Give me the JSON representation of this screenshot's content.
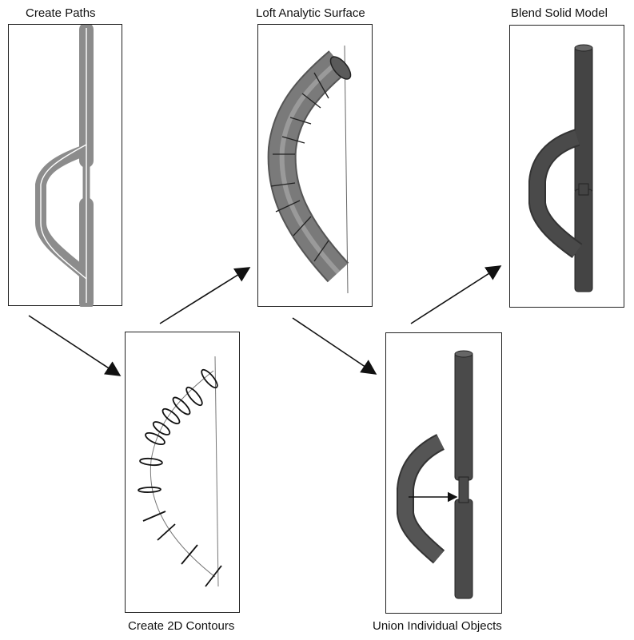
{
  "steps": {
    "create_paths": "Create Paths",
    "create_contours": "Create 2D Contours",
    "loft_surface": "Loft Analytic Surface",
    "union_objects": "Union Individual Objects",
    "blend_model": "Blend Solid Model"
  },
  "colors": {
    "path_gray": "#8c8c8c",
    "surface_gray": "#6e6e6e",
    "solid_dark": "#444444",
    "line": "#111111"
  }
}
